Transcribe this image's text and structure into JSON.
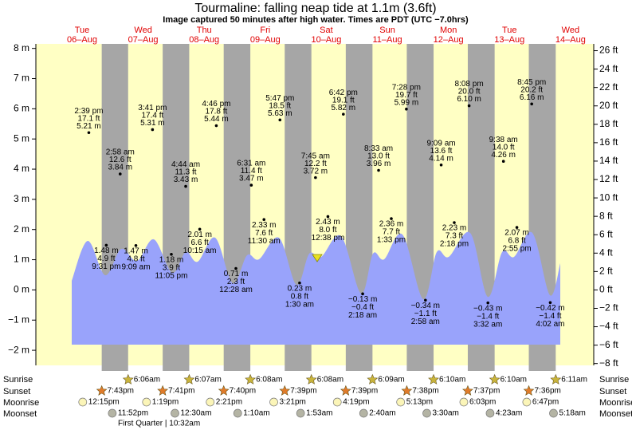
{
  "chart_data": {
    "type": "tide",
    "title": "Tourmaline: falling  neap tide at 1.1m (3.6ft)",
    "subtitle": "Image captured 50 minutes after high water. Times are PDT (UTC −7.0hrs)",
    "ylim": [
      -2.5,
      8.15
    ],
    "yticks": [
      {
        "value": 8,
        "label": "8 m"
      },
      {
        "value": 7,
        "label": "7 m"
      },
      {
        "value": 6,
        "label": "6 m"
      },
      {
        "value": 5,
        "label": "5 m"
      },
      {
        "value": 4,
        "label": "4 m"
      },
      {
        "value": 3,
        "label": "3 m"
      },
      {
        "value": 2,
        "label": "2 m"
      },
      {
        "value": 1,
        "label": "1 m"
      },
      {
        "value": 0,
        "label": "0 m"
      },
      {
        "value": -1,
        "label": "−1 m"
      },
      {
        "value": -2,
        "label": "−2 m"
      }
    ],
    "y2lim": [
      -8.2,
      26.74
    ],
    "y2ticks": [
      {
        "value": 26,
        "label": "26 ft"
      },
      {
        "value": 24,
        "label": "24 ft"
      },
      {
        "value": 22,
        "label": "22 ft"
      },
      {
        "value": 20,
        "label": "20 ft"
      },
      {
        "value": 18,
        "label": "18 ft"
      },
      {
        "value": 16,
        "label": "16 ft"
      },
      {
        "value": 14,
        "label": "14 ft"
      },
      {
        "value": 12,
        "label": "12 ft"
      },
      {
        "value": 10,
        "label": "10 ft"
      },
      {
        "value": 8,
        "label": "8 ft"
      },
      {
        "value": 6,
        "label": "6 ft"
      },
      {
        "value": 4,
        "label": "4 ft"
      },
      {
        "value": 2,
        "label": "2 ft"
      },
      {
        "value": 0,
        "label": "0 ft"
      },
      {
        "value": -2,
        "label": "−2 ft"
      },
      {
        "value": -4,
        "label": "−4 ft"
      },
      {
        "value": -6,
        "label": "−6 ft"
      },
      {
        "value": -8,
        "label": "−8 ft"
      }
    ],
    "row_labels": {
      "sunrise": "Sunrise",
      "sunset": "Sunset",
      "moonrise": "Moonrise",
      "moonset": "Moonset"
    },
    "moon_phase": "First Quarter | 10:32am",
    "days": [
      {
        "weekday": "Tue",
        "date": "06–Aug",
        "sunset": "7:43pm",
        "moonrise": "12:15pm",
        "moonset": "11:52pm",
        "tides": [
          {
            "time": "2:39 pm",
            "ft": {
              "value": 17.1,
              "label": "17.1 ft"
            },
            "m": {
              "value": 5.21,
              "label": "5.21 m"
            }
          },
          {
            "time": "9:31 pm",
            "ft": {
              "value": 4.9,
              "label": "4.9 ft"
            },
            "m": {
              "value": 1.48,
              "label": "1.48 m"
            }
          }
        ]
      },
      {
        "weekday": "Wed",
        "date": "07–Aug",
        "sunrise": "6:06am",
        "sunset": "7:41pm",
        "moonrise": "1:19pm",
        "tides": [
          {
            "time": "2:58 am",
            "ft": {
              "value": 12.6,
              "label": "12.6 ft"
            },
            "m": {
              "value": 3.84,
              "label": "3.84 m"
            }
          },
          {
            "time": "9:09 am",
            "ft": {
              "value": 4.8,
              "label": "4.8 ft"
            },
            "m": {
              "value": 1.47,
              "label": "1.47 m"
            }
          },
          {
            "time": "3:41 pm",
            "ft": {
              "value": 17.4,
              "label": "17.4 ft"
            },
            "m": {
              "value": 5.31,
              "label": "5.31 m"
            }
          },
          {
            "time": "11:05 pm",
            "ft": {
              "value": 3.9,
              "label": "3.9 ft"
            },
            "m": {
              "value": 1.18,
              "label": "1.18 m"
            }
          }
        ]
      },
      {
        "weekday": "Thu",
        "date": "08–Aug",
        "sunrise": "6:07am",
        "sunset": "7:40pm",
        "moonrise": "2:21pm",
        "moonset": "12:30am",
        "tides": [
          {
            "time": "4:44 am",
            "ft": {
              "value": 11.3,
              "label": "11.3 ft"
            },
            "m": {
              "value": 3.43,
              "label": "3.43 m"
            }
          },
          {
            "time": "10:15 am",
            "ft": {
              "value": 6.6,
              "label": "6.6 ft"
            },
            "m": {
              "value": 2.01,
              "label": "2.01 m"
            }
          },
          {
            "time": "4:46 pm",
            "ft": {
              "value": 17.8,
              "label": "17.8 ft"
            },
            "m": {
              "value": 5.44,
              "label": "5.44 m"
            }
          }
        ]
      },
      {
        "weekday": "Fri",
        "date": "09–Aug",
        "sunrise": "6:08am",
        "sunset": "7:39pm",
        "moonrise": "3:21pm",
        "moonset": "1:10am",
        "tides": [
          {
            "time": "12:28 am",
            "ft": {
              "value": 2.3,
              "label": "2.3 ft"
            },
            "m": {
              "value": 0.71,
              "label": "0.71 m"
            }
          },
          {
            "time": "6:31 am",
            "ft": {
              "value": 11.4,
              "label": "11.4 ft"
            },
            "m": {
              "value": 3.47,
              "label": "3.47 m"
            }
          },
          {
            "time": "11:30 am",
            "ft": {
              "value": 7.6,
              "label": "7.6 ft"
            },
            "m": {
              "value": 2.33,
              "label": "2.33 m"
            }
          },
          {
            "time": "5:47 pm",
            "ft": {
              "value": 18.5,
              "label": "18.5 ft"
            },
            "m": {
              "value": 5.63,
              "label": "5.63 m"
            }
          }
        ]
      },
      {
        "weekday": "Sat",
        "date": "10–Aug",
        "sunrise": "6:08am",
        "sunset": "7:39pm",
        "moonrise": "4:19pm",
        "moonset": "1:53am",
        "tides": [
          {
            "time": "1:30 am",
            "ft": {
              "value": 0.8,
              "label": "0.8 ft"
            },
            "m": {
              "value": 0.23,
              "label": "0.23 m"
            }
          },
          {
            "time": "7:45 am",
            "ft": {
              "value": 12.2,
              "label": "12.2 ft"
            },
            "m": {
              "value": 3.72,
              "label": "3.72 m"
            }
          },
          {
            "time": "12:38 pm",
            "ft": {
              "value": 8.0,
              "label": "8.0 ft"
            },
            "m": {
              "value": 2.43,
              "label": "2.43 m"
            }
          },
          {
            "time": "6:42 pm",
            "ft": {
              "value": 19.1,
              "label": "19.1 ft"
            },
            "m": {
              "value": 5.82,
              "label": "5.82 m"
            }
          }
        ]
      },
      {
        "weekday": "Sun",
        "date": "11–Aug",
        "sunrise": "6:09am",
        "sunset": "7:38pm",
        "moonrise": "5:13pm",
        "moonset": "2:40am",
        "tides": [
          {
            "time": "2:18 am",
            "ft": {
              "value": -0.4,
              "label": "−0.4 ft"
            },
            "m": {
              "value": -0.13,
              "label": "−0.13 m"
            }
          },
          {
            "time": "8:33 am",
            "ft": {
              "value": 13.0,
              "label": "13.0 ft"
            },
            "m": {
              "value": 3.96,
              "label": "3.96 m"
            }
          },
          {
            "time": "1:33 pm",
            "ft": {
              "value": 7.7,
              "label": "7.7 ft"
            },
            "m": {
              "value": 2.36,
              "label": "2.36 m"
            }
          },
          {
            "time": "7:28 pm",
            "ft": {
              "value": 19.7,
              "label": "19.7 ft"
            },
            "m": {
              "value": 5.99,
              "label": "5.99 m"
            }
          }
        ]
      },
      {
        "weekday": "Mon",
        "date": "12–Aug",
        "sunrise": "6:10am",
        "sunset": "7:37pm",
        "moonrise": "6:03pm",
        "moonset": "3:30am",
        "tides": [
          {
            "time": "2:58 am",
            "ft": {
              "value": -1.1,
              "label": "−1.1 ft"
            },
            "m": {
              "value": -0.34,
              "label": "−0.34 m"
            }
          },
          {
            "time": "9:09 am",
            "ft": {
              "value": 13.6,
              "label": "13.6 ft"
            },
            "m": {
              "value": 4.14,
              "label": "4.14 m"
            }
          },
          {
            "time": "2:18 pm",
            "ft": {
              "value": 7.3,
              "label": "7.3 ft"
            },
            "m": {
              "value": 2.23,
              "label": "2.23 m"
            }
          },
          {
            "time": "8:08 pm",
            "ft": {
              "value": 20.0,
              "label": "20.0 ft"
            },
            "m": {
              "value": 6.1,
              "label": "6.10 m"
            }
          }
        ]
      },
      {
        "weekday": "Tue",
        "date": "13–Aug",
        "sunrise": "6:10am",
        "sunset": "7:36pm",
        "moonrise": "6:47pm",
        "moonset": "4:23am",
        "tides": [
          {
            "time": "3:32 am",
            "ft": {
              "value": -1.4,
              "label": "−1.4 ft"
            },
            "m": {
              "value": -0.43,
              "label": "−0.43 m"
            }
          },
          {
            "time": "9:38 am",
            "ft": {
              "value": 14.0,
              "label": "14.0 ft"
            },
            "m": {
              "value": 4.26,
              "label": "4.26 m"
            }
          },
          {
            "time": "2:55 pm",
            "ft": {
              "value": 6.8,
              "label": "6.8 ft"
            },
            "m": {
              "value": 2.07,
              "label": "2.07 m"
            }
          },
          {
            "time": "8:45 pm",
            "ft": {
              "value": 20.2,
              "label": "20.2 ft"
            },
            "m": {
              "value": 6.16,
              "label": "6.16 m"
            }
          }
        ]
      },
      {
        "weekday": "Wed",
        "date": "14–Aug",
        "sunrise": "6:11am",
        "moonset": "5:18am",
        "tides": [
          {
            "time": "4:02 am",
            "ft": {
              "value": -1.4,
              "label": "−1.4 ft"
            },
            "m": {
              "value": -0.42,
              "label": "−0.42 m"
            }
          }
        ]
      }
    ]
  }
}
